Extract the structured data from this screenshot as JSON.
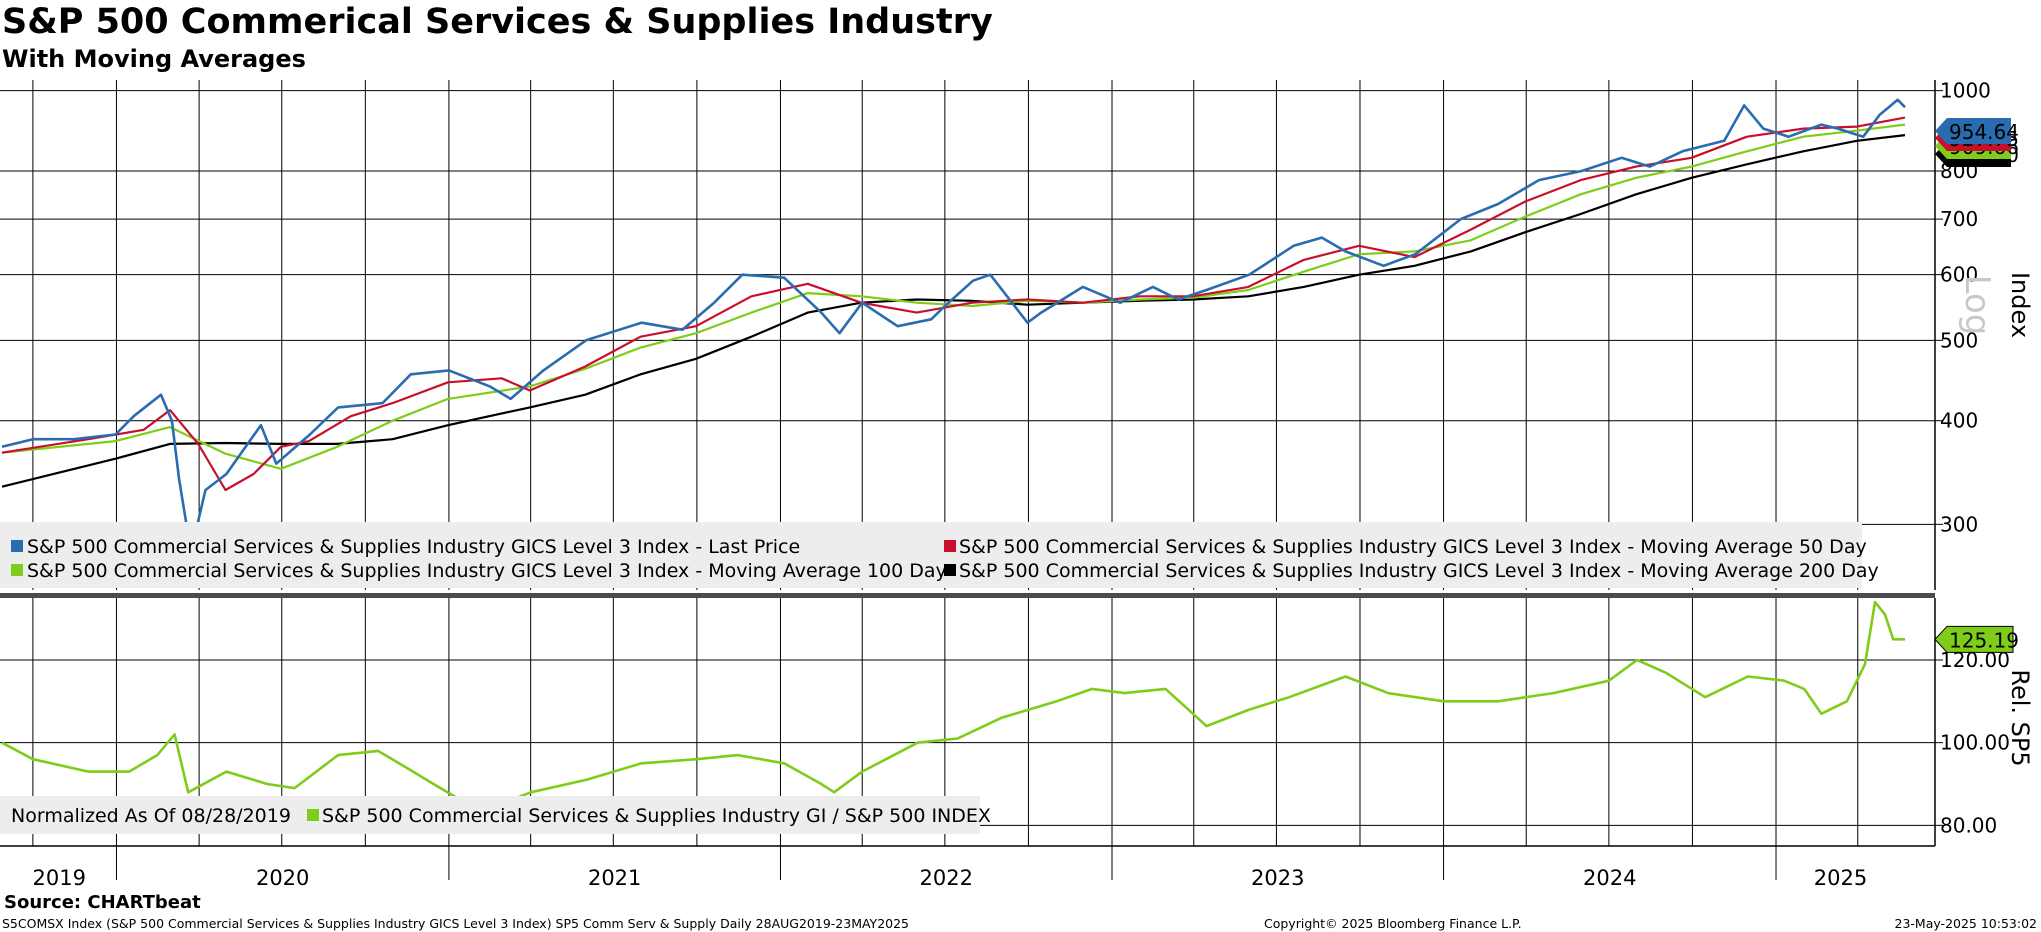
{
  "title": "S&P 500 Commerical Services & Supplies Industry",
  "subtitle": "With Moving Averages",
  "source": "Source: CHARTbeat",
  "footer": {
    "left": "S5COMSX Index (S&P 500 Commercial Services & Supplies Industry GICS Level 3 Index) SP5 Comm Serv & Supply  Daily 28AUG2019-23MAY2025",
    "center": "Copyright© 2025 Bloomberg Finance L.P.",
    "right": "23-May-2025 10:53:02"
  },
  "colors": {
    "price": "#2a6cb0",
    "ma50": "#c8102e",
    "ma100": "#7fcc1a",
    "ma200": "#000000",
    "relative": "#7fcc1a",
    "grid": "#000000",
    "legend_bg": "#ededed"
  },
  "chart_data": [
    {
      "type": "line",
      "yscale": "log",
      "ylabel": "Index",
      "scale_label": "Log",
      "ylim": [
        250,
        1030
      ],
      "y_ticks": [
        300,
        400,
        500,
        600,
        700,
        800,
        1000
      ],
      "x_range": [
        "2019-08-28",
        "2025-05-23"
      ],
      "x_year_labels": [
        "2019",
        "2020",
        "2021",
        "2022",
        "2023",
        "2024",
        "2025"
      ],
      "grid": true,
      "legend": "bottom",
      "series": [
        {
          "name": "S&P 500 Commercial Services & Supplies Industry GICS Level 3 Index - Last Price",
          "last_value_label": "954.64",
          "points": [
            [
              "2019-08-28",
              372
            ],
            [
              "2019-10-01",
              380
            ],
            [
              "2019-11-15",
              380
            ],
            [
              "2019-12-31",
              385
            ],
            [
              "2020-01-20",
              405
            ],
            [
              "2020-02-19",
              430
            ],
            [
              "2020-03-02",
              400
            ],
            [
              "2020-03-10",
              340
            ],
            [
              "2020-03-23",
              278
            ],
            [
              "2020-04-08",
              330
            ],
            [
              "2020-05-01",
              345
            ],
            [
              "2020-06-08",
              395
            ],
            [
              "2020-06-25",
              355
            ],
            [
              "2020-08-01",
              385
            ],
            [
              "2020-09-01",
              415
            ],
            [
              "2020-10-20",
              420
            ],
            [
              "2020-11-20",
              455
            ],
            [
              "2021-01-01",
              460
            ],
            [
              "2021-02-15",
              440
            ],
            [
              "2021-03-10",
              425
            ],
            [
              "2021-04-15",
              460
            ],
            [
              "2021-06-01",
              500
            ],
            [
              "2021-08-01",
              525
            ],
            [
              "2021-09-15",
              515
            ],
            [
              "2021-10-20",
              555
            ],
            [
              "2021-11-20",
              600
            ],
            [
              "2022-01-05",
              595
            ],
            [
              "2022-02-15",
              540
            ],
            [
              "2022-03-07",
              510
            ],
            [
              "2022-04-01",
              555
            ],
            [
              "2022-05-10",
              520
            ],
            [
              "2022-06-16",
              530
            ],
            [
              "2022-07-01",
              550
            ],
            [
              "2022-08-01",
              590
            ],
            [
              "2022-08-20",
              600
            ],
            [
              "2022-09-30",
              525
            ],
            [
              "2022-10-15",
              540
            ],
            [
              "2022-11-30",
              580
            ],
            [
              "2023-01-10",
              555
            ],
            [
              "2023-02-15",
              580
            ],
            [
              "2023-03-15",
              560
            ],
            [
              "2023-04-15",
              575
            ],
            [
              "2023-06-01",
              600
            ],
            [
              "2023-07-20",
              650
            ],
            [
              "2023-08-20",
              665
            ],
            [
              "2023-09-15",
              640
            ],
            [
              "2023-10-27",
              615
            ],
            [
              "2023-12-01",
              635
            ],
            [
              "2024-01-20",
              700
            ],
            [
              "2024-03-01",
              730
            ],
            [
              "2024-04-15",
              780
            ],
            [
              "2024-06-01",
              800
            ],
            [
              "2024-07-15",
              830
            ],
            [
              "2024-08-15",
              810
            ],
            [
              "2024-09-20",
              845
            ],
            [
              "2024-11-05",
              870
            ],
            [
              "2024-11-27",
              960
            ],
            [
              "2024-12-18",
              900
            ],
            [
              "2025-01-15",
              880
            ],
            [
              "2025-02-20",
              910
            ],
            [
              "2025-03-10",
              900
            ],
            [
              "2025-04-07",
              880
            ],
            [
              "2025-04-25",
              935
            ],
            [
              "2025-05-15",
              975
            ],
            [
              "2025-05-23",
              955
            ]
          ]
        },
        {
          "name": "S&P 500 Commercial Services & Supplies Industry GICS Level 3 Index - Moving Average 50 Day",
          "last_value_label": "927.75",
          "points": [
            [
              "2019-08-28",
              366
            ],
            [
              "2019-12-01",
              380
            ],
            [
              "2020-01-31",
              390
            ],
            [
              "2020-02-29",
              412
            ],
            [
              "2020-03-31",
              375
            ],
            [
              "2020-04-30",
              330
            ],
            [
              "2020-05-31",
              345
            ],
            [
              "2020-06-30",
              372
            ],
            [
              "2020-07-31",
              378
            ],
            [
              "2020-09-15",
              405
            ],
            [
              "2020-10-31",
              420
            ],
            [
              "2020-12-31",
              445
            ],
            [
              "2021-02-28",
              450
            ],
            [
              "2021-03-31",
              435
            ],
            [
              "2021-05-31",
              465
            ],
            [
              "2021-07-31",
              505
            ],
            [
              "2021-09-30",
              520
            ],
            [
              "2021-11-30",
              565
            ],
            [
              "2022-01-31",
              585
            ],
            [
              "2022-03-31",
              555
            ],
            [
              "2022-05-31",
              540
            ],
            [
              "2022-07-31",
              555
            ],
            [
              "2022-09-30",
              560
            ],
            [
              "2022-11-30",
              555
            ],
            [
              "2023-01-31",
              565
            ],
            [
              "2023-03-31",
              565
            ],
            [
              "2023-05-31",
              580
            ],
            [
              "2023-07-31",
              625
            ],
            [
              "2023-09-30",
              650
            ],
            [
              "2023-11-30",
              630
            ],
            [
              "2024-01-31",
              680
            ],
            [
              "2024-03-31",
              735
            ],
            [
              "2024-05-31",
              780
            ],
            [
              "2024-07-31",
              810
            ],
            [
              "2024-09-30",
              830
            ],
            [
              "2024-11-30",
              880
            ],
            [
              "2025-01-31",
              900
            ],
            [
              "2025-03-31",
              905
            ],
            [
              "2025-05-23",
              928
            ]
          ]
        },
        {
          "name": "S&P 500 Commercial Services & Supplies Industry GICS Level 3 Index - Moving Average 100 Day",
          "last_value_label": "909.66",
          "points": [
            [
              "2019-08-28",
              366
            ],
            [
              "2019-12-31",
              378
            ],
            [
              "2020-02-29",
              393
            ],
            [
              "2020-04-30",
              365
            ],
            [
              "2020-06-30",
              350
            ],
            [
              "2020-08-31",
              372
            ],
            [
              "2020-10-31",
              400
            ],
            [
              "2020-12-31",
              425
            ],
            [
              "2021-03-31",
              440
            ],
            [
              "2021-05-31",
              462
            ],
            [
              "2021-07-31",
              490
            ],
            [
              "2021-09-30",
              510
            ],
            [
              "2021-11-30",
              540
            ],
            [
              "2022-01-31",
              570
            ],
            [
              "2022-03-31",
              565
            ],
            [
              "2022-05-31",
              555
            ],
            [
              "2022-07-31",
              550
            ],
            [
              "2022-09-30",
              558
            ],
            [
              "2022-11-30",
              555
            ],
            [
              "2023-01-31",
              560
            ],
            [
              "2023-03-31",
              563
            ],
            [
              "2023-05-31",
              575
            ],
            [
              "2023-07-31",
              605
            ],
            [
              "2023-09-30",
              635
            ],
            [
              "2023-11-30",
              640
            ],
            [
              "2024-01-31",
              660
            ],
            [
              "2024-03-31",
              705
            ],
            [
              "2024-05-31",
              750
            ],
            [
              "2024-07-31",
              785
            ],
            [
              "2024-09-30",
              810
            ],
            [
              "2024-11-30",
              845
            ],
            [
              "2025-01-31",
              880
            ],
            [
              "2025-03-31",
              895
            ],
            [
              "2025-05-23",
              910
            ]
          ]
        },
        {
          "name": "S&P 500 Commercial Services & Supplies Industry GICS Level 3 Index - Moving Average 200 Day",
          "last_value_label": "883.60",
          "points": [
            [
              "2019-08-28",
              333
            ],
            [
              "2019-12-31",
              360
            ],
            [
              "2020-02-29",
              375
            ],
            [
              "2020-04-30",
              376
            ],
            [
              "2020-06-30",
              375
            ],
            [
              "2020-08-31",
              375
            ],
            [
              "2020-10-31",
              380
            ],
            [
              "2020-12-31",
              395
            ],
            [
              "2021-03-31",
              415
            ],
            [
              "2021-05-31",
              430
            ],
            [
              "2021-07-31",
              455
            ],
            [
              "2021-09-30",
              475
            ],
            [
              "2021-11-30",
              505
            ],
            [
              "2022-01-31",
              540
            ],
            [
              "2022-03-31",
              555
            ],
            [
              "2022-05-31",
              560
            ],
            [
              "2022-07-31",
              558
            ],
            [
              "2022-09-30",
              552
            ],
            [
              "2022-11-30",
              555
            ],
            [
              "2023-01-31",
              558
            ],
            [
              "2023-03-31",
              560
            ],
            [
              "2023-05-31",
              565
            ],
            [
              "2023-07-31",
              580
            ],
            [
              "2023-09-30",
              600
            ],
            [
              "2023-11-30",
              615
            ],
            [
              "2024-01-31",
              640
            ],
            [
              "2024-03-31",
              675
            ],
            [
              "2024-05-31",
              710
            ],
            [
              "2024-07-31",
              750
            ],
            [
              "2024-09-30",
              785
            ],
            [
              "2024-11-30",
              815
            ],
            [
              "2025-01-31",
              845
            ],
            [
              "2025-03-31",
              870
            ],
            [
              "2025-05-23",
              884
            ]
          ]
        }
      ]
    },
    {
      "type": "line",
      "ylabel": "Rel. SP5",
      "ylim": [
        75,
        135
      ],
      "y_ticks": [
        80,
        100,
        120
      ],
      "y_tick_labels": [
        "80.00",
        "100.00",
        "120.00"
      ],
      "note": "Normalized As Of 08/28/2019",
      "legend": "bottom-left",
      "series": [
        {
          "name": "S&P 500 Commercial Services & Supplies Industry GI / S&P 500 INDEX",
          "last_value_label": "125.19",
          "points": [
            [
              "2019-08-28",
              100
            ],
            [
              "2019-10-01",
              96
            ],
            [
              "2019-12-01",
              93
            ],
            [
              "2020-01-15",
              93
            ],
            [
              "2020-02-15",
              97
            ],
            [
              "2020-03-05",
              102
            ],
            [
              "2020-03-20",
              88
            ],
            [
              "2020-05-01",
              93
            ],
            [
              "2020-06-15",
              90
            ],
            [
              "2020-07-15",
              89
            ],
            [
              "2020-09-01",
              97
            ],
            [
              "2020-10-15",
              98
            ],
            [
              "2020-11-15",
              94
            ],
            [
              "2020-12-15",
              90
            ],
            [
              "2021-01-15",
              86
            ],
            [
              "2021-02-15",
              84
            ],
            [
              "2021-04-01",
              88
            ],
            [
              "2021-06-01",
              91
            ],
            [
              "2021-08-01",
              95
            ],
            [
              "2021-10-01",
              96
            ],
            [
              "2021-11-15",
              97
            ],
            [
              "2022-01-05",
              95
            ],
            [
              "2022-02-15",
              90
            ],
            [
              "2022-03-01",
              88
            ],
            [
              "2022-04-01",
              93
            ],
            [
              "2022-06-01",
              100
            ],
            [
              "2022-07-15",
              101
            ],
            [
              "2022-09-01",
              106
            ],
            [
              "2022-11-01",
              110
            ],
            [
              "2022-12-10",
              113
            ],
            [
              "2023-01-15",
              112
            ],
            [
              "2023-03-01",
              113
            ],
            [
              "2023-04-15",
              104
            ],
            [
              "2023-06-01",
              108
            ],
            [
              "2023-07-15",
              111
            ],
            [
              "2023-09-15",
              116
            ],
            [
              "2023-11-01",
              112
            ],
            [
              "2024-01-01",
              110
            ],
            [
              "2024-03-01",
              110
            ],
            [
              "2024-05-01",
              112
            ],
            [
              "2024-07-01",
              115
            ],
            [
              "2024-08-01",
              120
            ],
            [
              "2024-09-01",
              117
            ],
            [
              "2024-10-15",
              111
            ],
            [
              "2024-12-01",
              116
            ],
            [
              "2025-01-10",
              115
            ],
            [
              "2025-02-01",
              113
            ],
            [
              "2025-02-20",
              107
            ],
            [
              "2025-03-20",
              110
            ],
            [
              "2025-04-09",
              119
            ],
            [
              "2025-04-20",
              134
            ],
            [
              "2025-05-01",
              131
            ],
            [
              "2025-05-10",
              125
            ],
            [
              "2025-05-23",
              125
            ]
          ]
        }
      ]
    }
  ]
}
